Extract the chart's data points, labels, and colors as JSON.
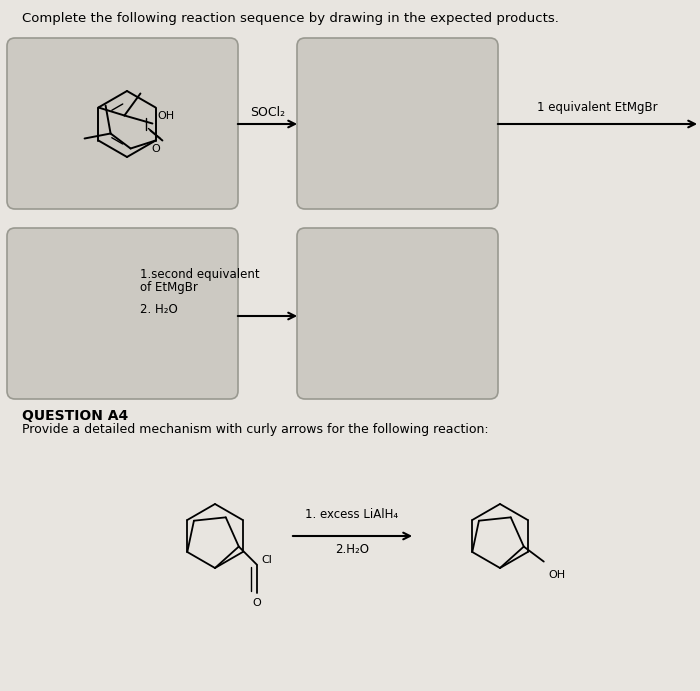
{
  "bg_color": "#e8e5e0",
  "box_color": "#ccc9c2",
  "box_edge": "#999990",
  "title": "Complete the following reaction sequence by drawing in the expected products.",
  "question_label": "QUESTION A4",
  "mechanism_text": "Provide a detailed mechanism with curly arrows for the following reaction:",
  "reagent_socl2": "SOCl₂",
  "reagent_etmgbr1": "1 equivalent EtMgBr",
  "reagent_etmgbr2_lines": [
    "1.second equivalent",
    "of EtMgBr",
    "2. H₂O"
  ],
  "reagent_lialh4_lines": [
    "1. excess LiAlH₄",
    "2.H₂O"
  ]
}
